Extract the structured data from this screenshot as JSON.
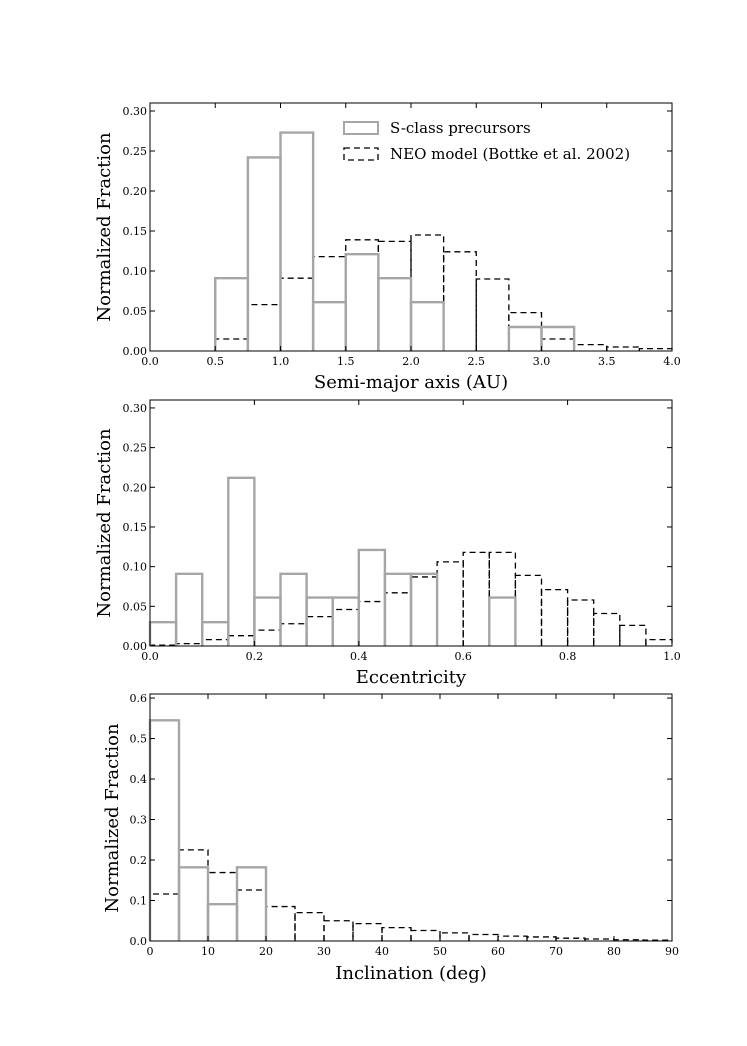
{
  "chart_data": [
    {
      "type": "bar",
      "xlabel": "Semi-major axis (AU)",
      "ylabel": "Normalized Fraction",
      "xlim": [
        0.0,
        4.0
      ],
      "ylim": [
        0.0,
        0.31
      ],
      "xticks": [
        "0.0",
        "0.5",
        "1.0",
        "1.5",
        "2.0",
        "2.5",
        "3.0",
        "3.5",
        "4.0"
      ],
      "yticks": [
        "0.00",
        "0.05",
        "0.10",
        "0.15",
        "0.20",
        "0.25",
        "0.30"
      ],
      "bin_edges": [
        0.0,
        0.25,
        0.5,
        0.75,
        1.0,
        1.25,
        1.5,
        1.75,
        2.0,
        2.25,
        2.5,
        2.75,
        3.0,
        3.25,
        3.5,
        3.75,
        4.0
      ],
      "legend": {
        "placement": "top-right",
        "entries": [
          "S-class precursors",
          "NEO model (Bottke et al. 2002)"
        ]
      },
      "series": [
        {
          "name": "S-class precursors",
          "style": "solid",
          "color": "#a6a6a6",
          "values": [
            0.0,
            0.0,
            0.091,
            0.242,
            0.273,
            0.061,
            0.121,
            0.091,
            0.061,
            0.0,
            0.0,
            0.03,
            0.03,
            0.0,
            0.0,
            0.0
          ]
        },
        {
          "name": "NEO model (Bottke et al. 2002)",
          "style": "dashed",
          "color": "#000000",
          "values": [
            0.0,
            0.0,
            0.015,
            0.058,
            0.091,
            0.118,
            0.139,
            0.137,
            0.145,
            0.124,
            0.09,
            0.048,
            0.015,
            0.008,
            0.005,
            0.003
          ]
        }
      ]
    },
    {
      "type": "bar",
      "xlabel": "Eccentricity",
      "ylabel": "Normalized Fraction",
      "xlim": [
        0.0,
        1.0
      ],
      "ylim": [
        0.0,
        0.31
      ],
      "xticks": [
        "0.0",
        "0.2",
        "0.4",
        "0.6",
        "0.8",
        "1.0"
      ],
      "yticks": [
        "0.00",
        "0.05",
        "0.10",
        "0.15",
        "0.20",
        "0.25",
        "0.30"
      ],
      "bin_edges": [
        0.0,
        0.05,
        0.1,
        0.15,
        0.2,
        0.25,
        0.3,
        0.35,
        0.4,
        0.45,
        0.5,
        0.55,
        0.6,
        0.65,
        0.7,
        0.75,
        0.8,
        0.85,
        0.9,
        0.95,
        1.0
      ],
      "series": [
        {
          "name": "S-class precursors",
          "style": "solid",
          "color": "#a6a6a6",
          "values": [
            0.03,
            0.091,
            0.03,
            0.212,
            0.061,
            0.091,
            0.061,
            0.061,
            0.121,
            0.091,
            0.091,
            0.0,
            0.0,
            0.061,
            0.0,
            0.0,
            0.0,
            0.0,
            0.0,
            0.0
          ]
        },
        {
          "name": "NEO model (Bottke et al. 2002)",
          "style": "dashed",
          "color": "#000000",
          "values": [
            0.001,
            0.003,
            0.008,
            0.013,
            0.02,
            0.028,
            0.037,
            0.046,
            0.056,
            0.067,
            0.087,
            0.106,
            0.118,
            0.118,
            0.089,
            0.071,
            0.058,
            0.041,
            0.026,
            0.008
          ]
        }
      ]
    },
    {
      "type": "bar",
      "xlabel": "Inclination (deg)",
      "ylabel": "Normalized Fraction",
      "xlim": [
        0,
        90
      ],
      "ylim": [
        0.0,
        0.61
      ],
      "xticks": [
        "0",
        "10",
        "20",
        "30",
        "40",
        "50",
        "60",
        "70",
        "80",
        "90"
      ],
      "yticks": [
        "0.0",
        "0.1",
        "0.2",
        "0.3",
        "0.4",
        "0.5",
        "0.6"
      ],
      "bin_edges": [
        0,
        5,
        10,
        15,
        20,
        25,
        30,
        35,
        40,
        45,
        50,
        55,
        60,
        65,
        70,
        75,
        80,
        85,
        90
      ],
      "series": [
        {
          "name": "S-class precursors",
          "style": "solid",
          "color": "#a6a6a6",
          "values": [
            0.545,
            0.182,
            0.091,
            0.182,
            0.0,
            0.0,
            0.0,
            0.0,
            0.0,
            0.0,
            0.0,
            0.0,
            0.0,
            0.0,
            0.0,
            0.0,
            0.0,
            0.0
          ]
        },
        {
          "name": "NEO model (Bottke et al. 2002)",
          "style": "dashed",
          "color": "#000000",
          "values": [
            0.116,
            0.225,
            0.169,
            0.126,
            0.085,
            0.07,
            0.05,
            0.043,
            0.033,
            0.026,
            0.02,
            0.016,
            0.012,
            0.01,
            0.007,
            0.005,
            0.003,
            0.002
          ]
        }
      ]
    }
  ]
}
